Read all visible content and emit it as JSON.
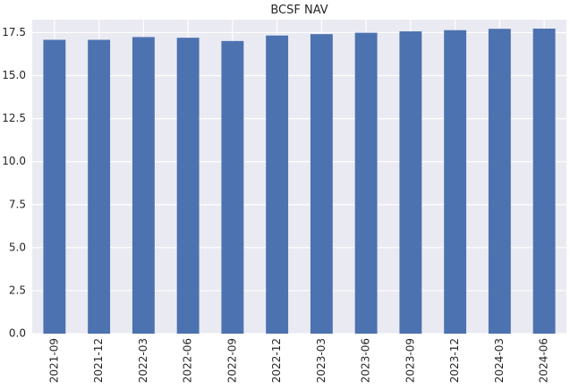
{
  "chart_data": {
    "type": "bar",
    "title": "BCSF NAV",
    "xlabel": "",
    "ylabel": "",
    "categories": [
      "2021-09",
      "2021-12",
      "2022-03",
      "2022-06",
      "2022-09",
      "2022-12",
      "2023-03",
      "2023-06",
      "2023-09",
      "2023-12",
      "2024-03",
      "2024-06"
    ],
    "series": [
      {
        "values": [
          17.08,
          17.08,
          17.24,
          17.2,
          17.01,
          17.33,
          17.41,
          17.49,
          17.57,
          17.64,
          17.72,
          17.73
        ]
      }
    ],
    "ylim": [
      0,
      18.25
    ],
    "yticks": [
      0.0,
      2.5,
      5.0,
      7.5,
      10.0,
      12.5,
      15.0,
      17.5
    ],
    "ytick_labels": [
      "0.0",
      "2.5",
      "5.0",
      "7.5",
      "10.0",
      "12.5",
      "15.0",
      "17.5"
    ],
    "grid": true,
    "legend": "none",
    "colors": {
      "bar": "#4c72b0",
      "plot_background": "#eaeaf2",
      "grid": "#ffffff"
    }
  }
}
